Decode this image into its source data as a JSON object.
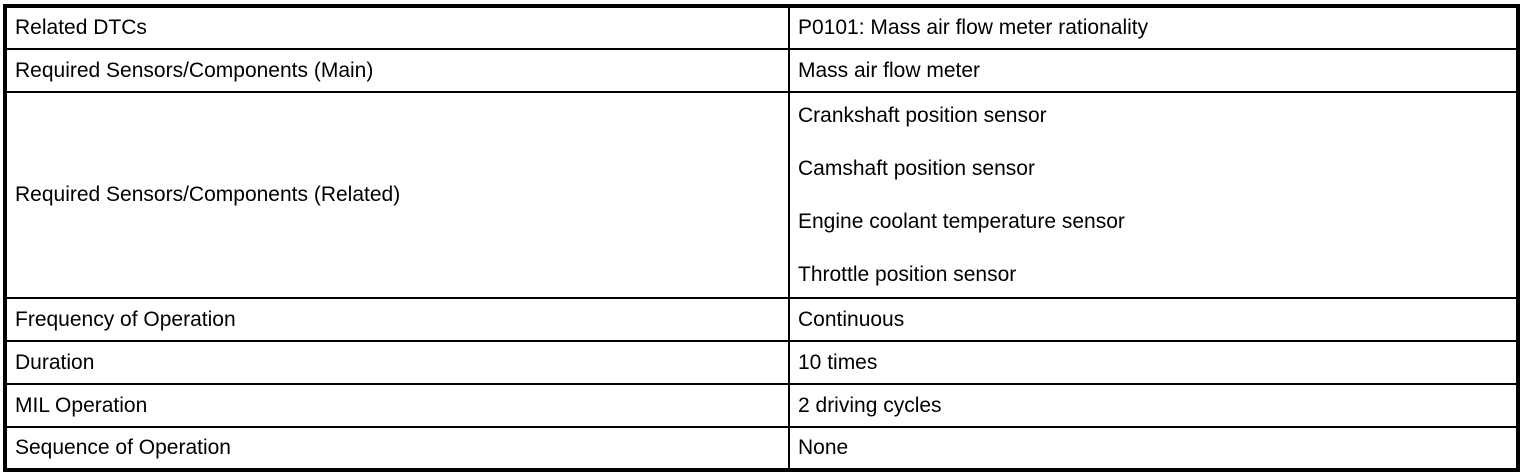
{
  "colors": {
    "border": "#000000",
    "background": "#ffffff",
    "text": "#000000"
  },
  "table": {
    "rows": [
      {
        "label": "Related DTCs",
        "value": "P0101: Mass air flow meter rationality"
      },
      {
        "label": "Required Sensors/Components (Main)",
        "value": "Mass air flow meter"
      },
      {
        "label": "Required Sensors/Components (Related)",
        "values": [
          "Crankshaft position sensor",
          "Camshaft position sensor",
          "Engine coolant temperature sensor",
          "Throttle position sensor"
        ]
      },
      {
        "label": "Frequency of Operation",
        "value": "Continuous"
      },
      {
        "label": "Duration",
        "value": "10 times"
      },
      {
        "label": "MIL Operation",
        "value": "2 driving cycles"
      },
      {
        "label": "Sequence of Operation",
        "value": "None"
      }
    ]
  }
}
